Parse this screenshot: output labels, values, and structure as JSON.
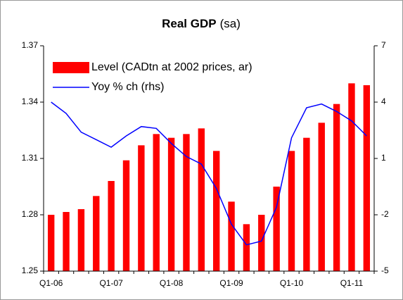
{
  "chart_data": {
    "type": "bar_line",
    "title": "Real GDP",
    "subtitle": "(sa)",
    "categories": [
      "Q1-06",
      null,
      null,
      null,
      "Q1-07",
      null,
      null,
      null,
      "Q1-08",
      null,
      null,
      null,
      "Q1-09",
      null,
      null,
      null,
      "Q1-10",
      null,
      null,
      null,
      "Q1-11",
      null
    ],
    "series": [
      {
        "name": "Level (CADtn at 2002 prices, ar)",
        "color": "#ff0000",
        "kind": "bar",
        "values": [
          1.28,
          1.2815,
          1.283,
          1.29,
          1.298,
          1.309,
          1.317,
          1.323,
          1.321,
          1.323,
          1.326,
          1.314,
          1.287,
          1.275,
          1.28,
          1.295,
          1.314,
          1.321,
          1.329,
          1.339,
          1.35,
          1.349
        ]
      },
      {
        "name": "Yoy % ch (rhs)",
        "color": "#0000ff",
        "kind": "line",
        "axis": "y2",
        "values": [
          4.0,
          3.4,
          2.4,
          2.0,
          1.6,
          2.2,
          2.7,
          2.6,
          1.8,
          1.1,
          0.7,
          -0.6,
          -2.5,
          -3.6,
          -3.4,
          -1.6,
          2.1,
          3.7,
          3.9,
          3.5,
          3.0,
          2.2
        ]
      }
    ],
    "ylim": [
      1.25,
      1.37
    ],
    "yticks": [
      1.25,
      1.28,
      1.31,
      1.34,
      1.37
    ],
    "y2lim": [
      -5,
      7
    ],
    "y2ticks": [
      -5,
      -2,
      1,
      4,
      7
    ],
    "grid": false,
    "legend": "top-left"
  }
}
